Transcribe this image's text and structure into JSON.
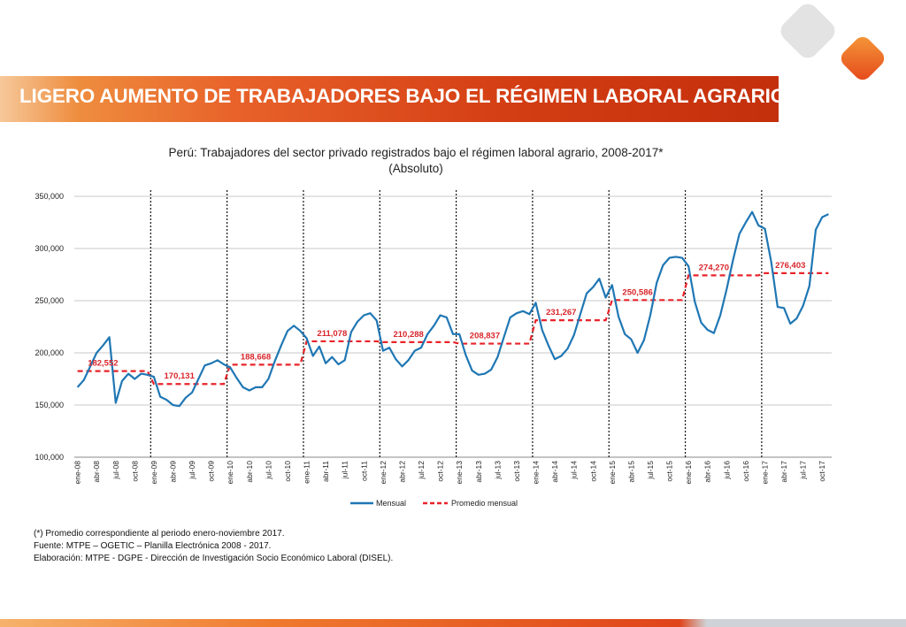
{
  "header": {
    "title": "LIGERO AUMENTO DE TRABAJADORES BAJO EL RÉGIMEN LABORAL AGRARIO"
  },
  "colors": {
    "banner": "#d43e14",
    "series_line": "#1f77b4",
    "average_line": "#e8232a",
    "logo_orange": "#e4461a",
    "logo_gray": "#e3e3e3"
  },
  "chart_data": {
    "type": "line",
    "title": "Perú: Trabajadores del sector privado registrados bajo el régimen laboral agrario, 2008-2017*",
    "subtitle": "(Absoluto)",
    "ylim": [
      100000,
      350000
    ],
    "yticks": [
      "100,000",
      "150,000",
      "200,000",
      "250,000",
      "300,000",
      "350,000"
    ],
    "ytick_values": [
      100000,
      150000,
      200000,
      250000,
      300000,
      350000
    ],
    "xtick_labels": [
      "ene-08",
      "abr-08",
      "jul-08",
      "oct-08",
      "ene-09",
      "abr-09",
      "jul-09",
      "oct-09",
      "ene-10",
      "abr-10",
      "jul-10",
      "oct-10",
      "ene-11",
      "abr-11",
      "jul-11",
      "oct-11",
      "ene-12",
      "abr-12",
      "jul-12",
      "oct-12",
      "ene-13",
      "abr-13",
      "jul-13",
      "oct-13",
      "ene-14",
      "abr-14",
      "jul-14",
      "oct-14",
      "ene-15",
      "abr-15",
      "jul-15",
      "oct-15",
      "ene-16",
      "abr-16",
      "jul-16",
      "oct-16",
      "ene-17",
      "abr-17",
      "jul-17",
      "oct-17"
    ],
    "grid": true,
    "legend": {
      "placement": "bottom",
      "entries": [
        "Mensual",
        "Promedio mensual"
      ]
    },
    "series": [
      {
        "name": "Mensual",
        "style": "solid",
        "values": [
          167000,
          174000,
          187000,
          200000,
          207000,
          215000,
          152000,
          173000,
          180000,
          175000,
          180000,
          179000,
          177000,
          158000,
          155000,
          150000,
          149000,
          157000,
          162000,
          175000,
          188000,
          190000,
          193000,
          189000,
          186000,
          176000,
          167000,
          164000,
          167000,
          167000,
          175000,
          192000,
          207000,
          221000,
          226000,
          221000,
          214000,
          197000,
          206000,
          190000,
          196000,
          189000,
          193000,
          220000,
          230000,
          236000,
          238000,
          231000,
          202000,
          205000,
          194000,
          187000,
          193000,
          202000,
          205000,
          218000,
          226000,
          236000,
          234000,
          218000,
          218000,
          198000,
          183000,
          179000,
          180000,
          184000,
          196000,
          215000,
          234000,
          238000,
          240000,
          237000,
          248000,
          222000,
          207000,
          194000,
          197000,
          204000,
          217000,
          237000,
          257000,
          263000,
          271000,
          253000,
          265000,
          235000,
          218000,
          213000,
          200000,
          212000,
          236000,
          267000,
          284000,
          291000,
          292000,
          291000,
          283000,
          249000,
          229000,
          222000,
          219000,
          236000,
          261000,
          289000,
          314000,
          325000,
          335000,
          322000,
          319000,
          287000,
          244000,
          243000,
          228000,
          233000,
          245000,
          264000,
          318000,
          330000,
          333000
        ]
      },
      {
        "name": "Promedio mensual",
        "style": "dashed",
        "yearly": [
          {
            "year": 2008,
            "value": 182552,
            "label": "182,552"
          },
          {
            "year": 2009,
            "value": 170131,
            "label": "170,131"
          },
          {
            "year": 2010,
            "value": 188668,
            "label": "188,668"
          },
          {
            "year": 2011,
            "value": 211078,
            "label": "211,078"
          },
          {
            "year": 2012,
            "value": 210288,
            "label": "210,288"
          },
          {
            "year": 2013,
            "value": 208837,
            "label": "208,837"
          },
          {
            "year": 2014,
            "value": 231267,
            "label": "231,267"
          },
          {
            "year": 2015,
            "value": 250586,
            "label": "250,586"
          },
          {
            "year": 2016,
            "value": 274270,
            "label": "274,270"
          },
          {
            "year": 2017,
            "value": 276403,
            "label": "276,403"
          }
        ]
      }
    ]
  },
  "notes": [
    "(*) Promedio correspondiente al periodo enero-noviembre 2017.",
    "Fuente: MTPE – OGETIC – Planilla Electrónica 2008 - 2017.",
    "Elaboración: MTPE - DGPE - Dirección de Investigación Socio Económico Laboral (DISEL)."
  ]
}
